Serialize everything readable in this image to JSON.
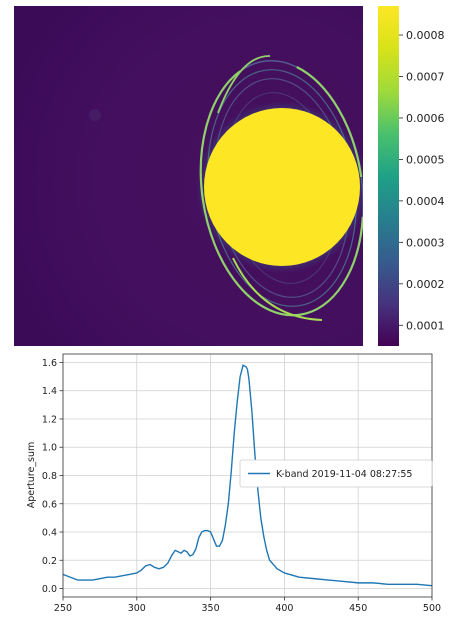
{
  "chart_data": [
    {
      "type": "heatmap",
      "title": "",
      "colormap": "viridis",
      "colorbar": {
        "ticks": [
          0.0001,
          0.0002,
          0.0003,
          0.0004,
          0.0005,
          0.0006,
          0.0007,
          0.0008
        ],
        "tick_labels": [
          "0.0001",
          "0.0002",
          "0.0003",
          "0.0004",
          "0.0005",
          "0.0006",
          "0.0007",
          "0.0008"
        ],
        "range": [
          5e-05,
          0.00087
        ]
      },
      "colors": {
        "background": "#440f60",
        "background_dark": "#3b0b58",
        "ring_bright": "#8fd16a",
        "ring_mid": "#4b8a99",
        "ring_faint": "#5a6e9a",
        "halo": "#21918c",
        "core": "#fde725"
      }
    },
    {
      "type": "line",
      "title": "",
      "xlabel": "",
      "ylabel": "Aperture_sum",
      "xlim": [
        250,
        500
      ],
      "ylim": [
        -0.06,
        1.66
      ],
      "xticks": [
        250,
        300,
        350,
        400,
        450,
        500
      ],
      "yticks": [
        0.0,
        0.2,
        0.4,
        0.6,
        0.8,
        1.0,
        1.2,
        1.4,
        1.6
      ],
      "ytick_labels": [
        "0.0",
        "0.2",
        "0.4",
        "0.6",
        "0.8",
        "1.0",
        "1.2",
        "1.4",
        "1.6"
      ],
      "grid": true,
      "legend_position": "center-right",
      "series": [
        {
          "name": "K-band 2019-11-04 08:27:55",
          "color": "#1f77b4",
          "x": [
            250,
            255,
            260,
            265,
            270,
            275,
            280,
            285,
            290,
            295,
            300,
            303,
            306,
            309,
            312,
            315,
            318,
            321,
            324,
            326,
            328,
            330,
            332,
            334,
            336,
            338,
            340,
            342,
            344,
            346,
            348,
            350,
            352,
            354,
            356,
            358,
            360,
            362,
            364,
            366,
            368,
            370,
            372,
            374,
            375,
            376,
            378,
            380,
            382,
            384,
            386,
            388,
            390,
            395,
            400,
            410,
            420,
            430,
            440,
            450,
            460,
            470,
            480,
            490,
            500
          ],
          "y": [
            0.1,
            0.08,
            0.06,
            0.06,
            0.06,
            0.07,
            0.08,
            0.08,
            0.09,
            0.1,
            0.11,
            0.13,
            0.16,
            0.17,
            0.15,
            0.14,
            0.15,
            0.18,
            0.24,
            0.27,
            0.26,
            0.25,
            0.27,
            0.26,
            0.23,
            0.24,
            0.28,
            0.36,
            0.4,
            0.41,
            0.41,
            0.4,
            0.35,
            0.3,
            0.3,
            0.34,
            0.45,
            0.6,
            0.83,
            1.1,
            1.32,
            1.5,
            1.58,
            1.57,
            1.55,
            1.48,
            1.25,
            0.95,
            0.7,
            0.5,
            0.37,
            0.27,
            0.2,
            0.14,
            0.11,
            0.08,
            0.07,
            0.06,
            0.05,
            0.04,
            0.04,
            0.03,
            0.03,
            0.03,
            0.02
          ]
        }
      ]
    }
  ]
}
